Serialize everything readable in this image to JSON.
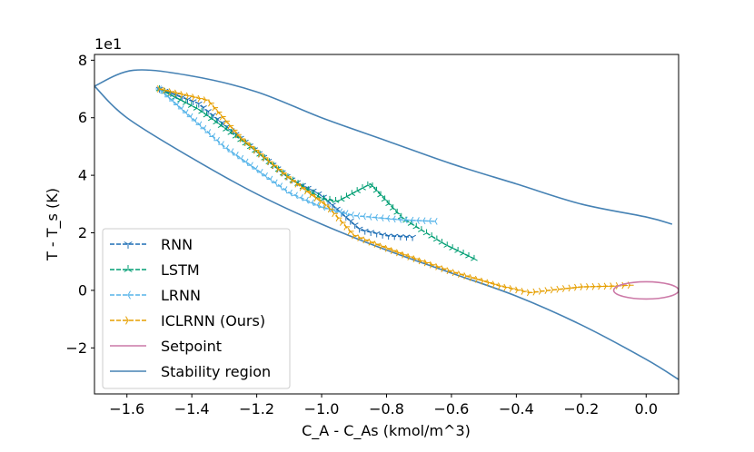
{
  "chart_data": {
    "type": "line",
    "xlabel": "C_A - C_As (kmol/m^3)",
    "ylabel": "T - T_s (K)",
    "y_offset_label": "1e1",
    "xlim": [
      -1.7,
      0.1
    ],
    "ylim": [
      -3.6,
      8.2
    ],
    "x_ticks": [
      -1.6,
      -1.4,
      -1.2,
      -1.0,
      -0.8,
      -0.6,
      -0.4,
      -0.2,
      0.0
    ],
    "x_tick_labels": [
      "−1.6",
      "−1.4",
      "−1.2",
      "−1.0",
      "−0.8",
      "−0.6",
      "−0.4",
      "−0.2",
      "0.0"
    ],
    "y_ticks": [
      -2,
      0,
      2,
      4,
      6,
      8
    ],
    "y_tick_labels": [
      "−2",
      "0",
      "2",
      "4",
      "6",
      "8"
    ],
    "legend_position": "lower-left",
    "series": [
      {
        "name": "RNN",
        "color": "#1f6fb5",
        "marker": "tri_down",
        "points": [
          [
            -1.5,
            7.0
          ],
          [
            -1.38,
            6.5
          ],
          [
            -1.24,
            5.2
          ],
          [
            -1.1,
            3.9
          ],
          [
            -1.0,
            3.3
          ],
          [
            -0.93,
            2.6
          ],
          [
            -0.88,
            2.1
          ],
          [
            -0.8,
            1.9
          ],
          [
            -0.72,
            1.85
          ]
        ]
      },
      {
        "name": "LSTM",
        "color": "#009e73",
        "marker": "tri_up",
        "points": [
          [
            -1.5,
            7.0
          ],
          [
            -1.38,
            6.3
          ],
          [
            -1.22,
            5.0
          ],
          [
            -1.1,
            3.9
          ],
          [
            -1.0,
            3.2
          ],
          [
            -0.95,
            3.1
          ],
          [
            -0.85,
            3.7
          ],
          [
            -0.75,
            2.5
          ],
          [
            -0.62,
            1.6
          ],
          [
            -0.53,
            1.1
          ]
        ]
      },
      {
        "name": "LRNN",
        "color": "#56b4e9",
        "marker": "tri_left",
        "points": [
          [
            -1.5,
            7.0
          ],
          [
            -1.4,
            6.0
          ],
          [
            -1.3,
            5.0
          ],
          [
            -1.2,
            4.2
          ],
          [
            -1.1,
            3.4
          ],
          [
            -1.0,
            2.9
          ],
          [
            -0.9,
            2.6
          ],
          [
            -0.75,
            2.45
          ],
          [
            -0.65,
            2.4
          ]
        ]
      },
      {
        "name": "ICLRNN (Ours)",
        "color": "#e69f00",
        "marker": "tri_right",
        "points": [
          [
            -1.5,
            7.0
          ],
          [
            -1.35,
            6.6
          ],
          [
            -1.25,
            5.3
          ],
          [
            -1.1,
            3.9
          ],
          [
            -0.98,
            2.9
          ],
          [
            -0.9,
            1.9
          ],
          [
            -0.75,
            1.25
          ],
          [
            -0.6,
            0.65
          ],
          [
            -0.45,
            0.15
          ],
          [
            -0.36,
            -0.08
          ],
          [
            -0.3,
            0.0
          ],
          [
            -0.2,
            0.12
          ],
          [
            -0.1,
            0.15
          ],
          [
            -0.05,
            0.18
          ]
        ]
      },
      {
        "name": "Setpoint",
        "color": "#cc79a7",
        "shape": "ellipse",
        "center": [
          0.0,
          0.0
        ],
        "rx": 0.1,
        "ry": 0.3
      },
      {
        "name": "Stability region",
        "color": "#4682b4",
        "shape": "rotated-ellipse",
        "upper_boundary": [
          [
            -1.7,
            7.1
          ],
          [
            -1.58,
            7.65
          ],
          [
            -1.4,
            7.45
          ],
          [
            -1.2,
            6.9
          ],
          [
            -1.0,
            6.0
          ],
          [
            -0.8,
            5.2
          ],
          [
            -0.6,
            4.4
          ],
          [
            -0.4,
            3.7
          ],
          [
            -0.2,
            3.0
          ],
          [
            0.0,
            2.55
          ],
          [
            0.08,
            2.3
          ]
        ],
        "lower_boundary": [
          [
            -1.7,
            7.1
          ],
          [
            -1.6,
            6.0
          ],
          [
            -1.4,
            4.6
          ],
          [
            -1.2,
            3.35
          ],
          [
            -1.0,
            2.3
          ],
          [
            -0.8,
            1.4
          ],
          [
            -0.6,
            0.6
          ],
          [
            -0.4,
            -0.2
          ],
          [
            -0.2,
            -1.2
          ],
          [
            0.0,
            -2.4
          ],
          [
            0.1,
            -3.1
          ]
        ]
      }
    ]
  }
}
